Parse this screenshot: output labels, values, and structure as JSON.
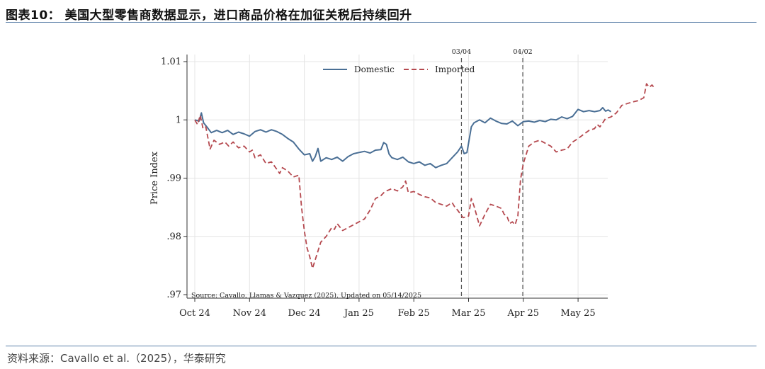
{
  "header": {
    "title": "图表10：  美国大型零售商数据显示，进口商品价格在加征关税后持续回升"
  },
  "footer": {
    "source": "资料来源：Cavallo et al.（2025），华泰研究"
  },
  "colors": {
    "rule": "#5a7fa8",
    "domestic": "#4a6f95",
    "imported": "#b5494f",
    "grid": "#e4e4e4"
  },
  "chart_data": {
    "type": "line",
    "title": "",
    "xlabel": "",
    "ylabel": "Price Index",
    "ylim": [
      0.97,
      1.011
    ],
    "xlim": [
      0,
      7.95
    ],
    "grid": true,
    "legend_position": "top-center",
    "y_ticks": [
      {
        "value": 0.97,
        "label": ".97"
      },
      {
        "value": 0.98,
        "label": ".98"
      },
      {
        "value": 0.99,
        "label": ".99"
      },
      {
        "value": 1.0,
        "label": "1"
      },
      {
        "value": 1.01,
        "label": "1.01"
      }
    ],
    "x_ticks": [
      {
        "value": 0,
        "label": "Oct 24"
      },
      {
        "value": 1,
        "label": "Nov 24"
      },
      {
        "value": 2,
        "label": "Dec 24"
      },
      {
        "value": 3,
        "label": "Jan 25"
      },
      {
        "value": 4,
        "label": "Feb 25"
      },
      {
        "value": 5,
        "label": "Mar 25"
      },
      {
        "value": 6,
        "label": "Apr 25"
      },
      {
        "value": 7,
        "label": "May 25"
      }
    ],
    "vlines": [
      {
        "x": 4.87,
        "label": "03/04"
      },
      {
        "x": 5.99,
        "label": "04/02"
      }
    ],
    "note": "Source: Cavallo, Llamas & Vazquez (2025). Updated on 05/14/2025",
    "series": [
      {
        "name": "Domestic",
        "style": "solid",
        "points": [
          [
            0.0,
            1.0
          ],
          [
            0.08,
            0.9998
          ],
          [
            0.12,
            1.0012
          ],
          [
            0.16,
            0.9995
          ],
          [
            0.22,
            0.9988
          ],
          [
            0.3,
            0.9978
          ],
          [
            0.4,
            0.9982
          ],
          [
            0.5,
            0.9978
          ],
          [
            0.6,
            0.9982
          ],
          [
            0.7,
            0.9975
          ],
          [
            0.8,
            0.9979
          ],
          [
            0.9,
            0.9976
          ],
          [
            1.0,
            0.9972
          ],
          [
            1.1,
            0.998
          ],
          [
            1.2,
            0.9983
          ],
          [
            1.3,
            0.9979
          ],
          [
            1.4,
            0.9983
          ],
          [
            1.5,
            0.998
          ],
          [
            1.6,
            0.9975
          ],
          [
            1.7,
            0.9968
          ],
          [
            1.8,
            0.9962
          ],
          [
            1.9,
            0.995
          ],
          [
            2.0,
            0.994
          ],
          [
            2.1,
            0.9942
          ],
          [
            2.15,
            0.9929
          ],
          [
            2.2,
            0.9937
          ],
          [
            2.25,
            0.9951
          ],
          [
            2.3,
            0.9929
          ],
          [
            2.4,
            0.9935
          ],
          [
            2.5,
            0.9932
          ],
          [
            2.6,
            0.9936
          ],
          [
            2.7,
            0.9929
          ],
          [
            2.8,
            0.9937
          ],
          [
            2.9,
            0.9942
          ],
          [
            3.0,
            0.9944
          ],
          [
            3.1,
            0.9946
          ],
          [
            3.2,
            0.9943
          ],
          [
            3.3,
            0.9948
          ],
          [
            3.4,
            0.9949
          ],
          [
            3.45,
            0.9961
          ],
          [
            3.5,
            0.9958
          ],
          [
            3.55,
            0.9941
          ],
          [
            3.6,
            0.9935
          ],
          [
            3.7,
            0.9932
          ],
          [
            3.8,
            0.9936
          ],
          [
            3.9,
            0.9928
          ],
          [
            4.0,
            0.9925
          ],
          [
            4.1,
            0.9928
          ],
          [
            4.2,
            0.9922
          ],
          [
            4.3,
            0.9925
          ],
          [
            4.4,
            0.9918
          ],
          [
            4.5,
            0.9922
          ],
          [
            4.6,
            0.9925
          ],
          [
            4.7,
            0.9935
          ],
          [
            4.8,
            0.9945
          ],
          [
            4.87,
            0.9955
          ],
          [
            4.92,
            0.9942
          ],
          [
            4.97,
            0.9944
          ],
          [
            5.0,
            0.996
          ],
          [
            5.05,
            0.9988
          ],
          [
            5.1,
            0.9995
          ],
          [
            5.2,
            1.0
          ],
          [
            5.3,
            0.9995
          ],
          [
            5.4,
            1.0003
          ],
          [
            5.5,
            0.9998
          ],
          [
            5.6,
            0.9994
          ],
          [
            5.7,
            0.9993
          ],
          [
            5.8,
            0.9998
          ],
          [
            5.9,
            0.999
          ],
          [
            6.0,
            0.9997
          ],
          [
            6.1,
            0.9998
          ],
          [
            6.2,
            0.9996
          ],
          [
            6.3,
            0.9999
          ],
          [
            6.4,
            0.9997
          ],
          [
            6.5,
            1.0001
          ],
          [
            6.6,
            1.0
          ],
          [
            6.7,
            1.0005
          ],
          [
            6.8,
            1.0002
          ],
          [
            6.9,
            1.0006
          ],
          [
            7.0,
            1.0018
          ],
          [
            7.1,
            1.0014
          ],
          [
            7.2,
            1.0016
          ],
          [
            7.3,
            1.0014
          ],
          [
            7.4,
            1.0016
          ],
          [
            7.45,
            1.0021
          ],
          [
            7.5,
            1.0015
          ],
          [
            7.55,
            1.0017
          ],
          [
            7.6,
            1.0014
          ]
        ]
      },
      {
        "name": "Imported",
        "style": "dashed",
        "points": [
          [
            0.0,
            1.0
          ],
          [
            0.05,
            0.9992
          ],
          [
            0.1,
            1.0008
          ],
          [
            0.15,
            0.9985
          ],
          [
            0.2,
            0.9988
          ],
          [
            0.28,
            0.995
          ],
          [
            0.35,
            0.9965
          ],
          [
            0.45,
            0.9958
          ],
          [
            0.55,
            0.9962
          ],
          [
            0.62,
            0.9955
          ],
          [
            0.7,
            0.9962
          ],
          [
            0.8,
            0.9952
          ],
          [
            0.9,
            0.9955
          ],
          [
            1.0,
            0.9945
          ],
          [
            1.05,
            0.9948
          ],
          [
            1.1,
            0.9935
          ],
          [
            1.2,
            0.994
          ],
          [
            1.3,
            0.9925
          ],
          [
            1.4,
            0.9928
          ],
          [
            1.5,
            0.9915
          ],
          [
            1.55,
            0.9908
          ],
          [
            1.6,
            0.9918
          ],
          [
            1.7,
            0.9912
          ],
          [
            1.8,
            0.9902
          ],
          [
            1.9,
            0.9905
          ],
          [
            1.95,
            0.985
          ],
          [
            2.0,
            0.981
          ],
          [
            2.05,
            0.978
          ],
          [
            2.1,
            0.9765
          ],
          [
            2.15,
            0.9745
          ],
          [
            2.2,
            0.976
          ],
          [
            2.3,
            0.979
          ],
          [
            2.4,
            0.98
          ],
          [
            2.5,
            0.9815
          ],
          [
            2.55,
            0.9812
          ],
          [
            2.6,
            0.9822
          ],
          [
            2.7,
            0.981
          ],
          [
            2.8,
            0.9815
          ],
          [
            2.9,
            0.982
          ],
          [
            3.0,
            0.9825
          ],
          [
            3.1,
            0.983
          ],
          [
            3.2,
            0.9845
          ],
          [
            3.3,
            0.9865
          ],
          [
            3.4,
            0.987
          ],
          [
            3.45,
            0.9875
          ],
          [
            3.5,
            0.9878
          ],
          [
            3.6,
            0.9882
          ],
          [
            3.7,
            0.9878
          ],
          [
            3.8,
            0.9885
          ],
          [
            3.85,
            0.9895
          ],
          [
            3.9,
            0.9875
          ],
          [
            4.0,
            0.9877
          ],
          [
            4.1,
            0.9872
          ],
          [
            4.2,
            0.9868
          ],
          [
            4.3,
            0.9866
          ],
          [
            4.4,
            0.9858
          ],
          [
            4.5,
            0.9855
          ],
          [
            4.6,
            0.9852
          ],
          [
            4.7,
            0.9858
          ],
          [
            4.75,
            0.985
          ],
          [
            4.8,
            0.9845
          ],
          [
            4.9,
            0.9832
          ],
          [
            5.0,
            0.9835
          ],
          [
            5.05,
            0.9865
          ],
          [
            5.1,
            0.9852
          ],
          [
            5.2,
            0.9818
          ],
          [
            5.3,
            0.9838
          ],
          [
            5.4,
            0.9855
          ],
          [
            5.5,
            0.9852
          ],
          [
            5.6,
            0.9848
          ],
          [
            5.65,
            0.9838
          ],
          [
            5.7,
            0.9835
          ],
          [
            5.75,
            0.9822
          ],
          [
            5.8,
            0.9825
          ],
          [
            5.85,
            0.982
          ],
          [
            5.9,
            0.9835
          ],
          [
            5.95,
            0.9898
          ],
          [
            6.0,
            0.9925
          ],
          [
            6.1,
            0.9955
          ],
          [
            6.2,
            0.9962
          ],
          [
            6.3,
            0.9965
          ],
          [
            6.4,
            0.996
          ],
          [
            6.5,
            0.9955
          ],
          [
            6.6,
            0.9945
          ],
          [
            6.7,
            0.9948
          ],
          [
            6.8,
            0.995
          ],
          [
            6.9,
            0.9962
          ],
          [
            7.0,
            0.9968
          ],
          [
            7.1,
            0.9975
          ],
          [
            7.2,
            0.9982
          ],
          [
            7.3,
            0.9985
          ],
          [
            7.35,
            0.9992
          ],
          [
            7.4,
            0.9988
          ],
          [
            7.5,
            1.0002
          ],
          [
            7.6,
            1.0005
          ],
          [
            7.7,
            1.0012
          ],
          [
            7.8,
            1.0025
          ],
          [
            7.9,
            1.0028
          ],
          [
            8.0,
            1.0031
          ],
          [
            8.1,
            1.0033
          ],
          [
            8.2,
            1.0038
          ],
          [
            8.25,
            1.0062
          ],
          [
            8.3,
            1.0056
          ],
          [
            8.35,
            1.006
          ],
          [
            8.4,
            1.0054
          ]
        ]
      }
    ]
  }
}
